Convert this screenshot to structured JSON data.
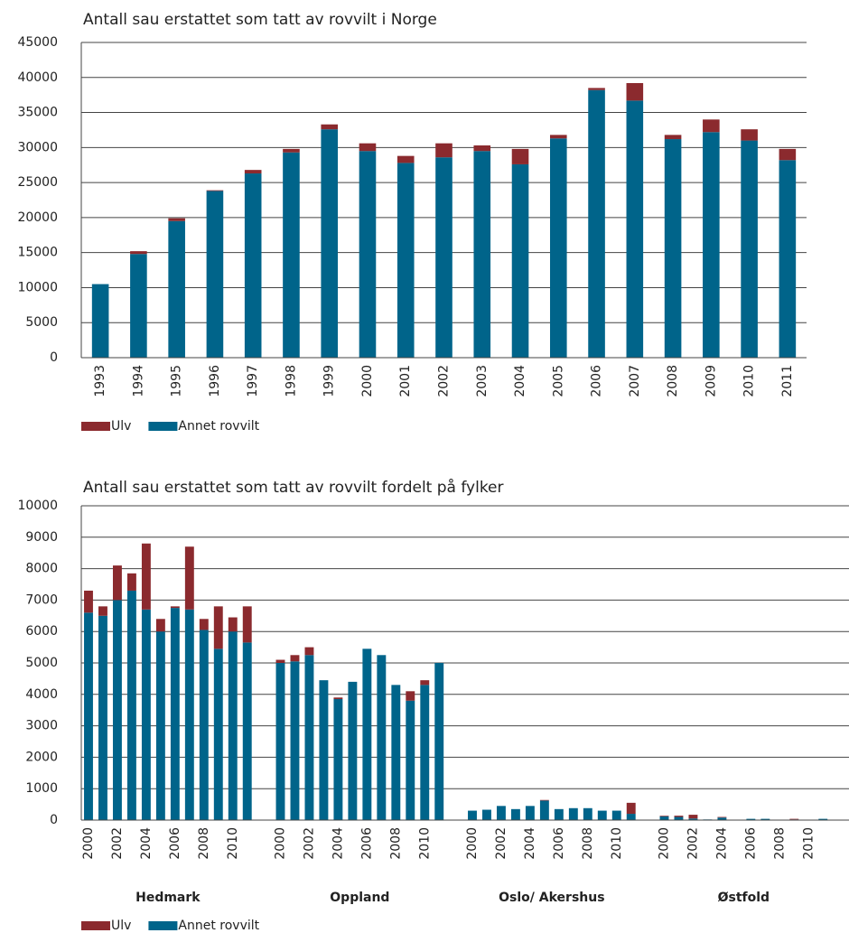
{
  "chart_data": [
    {
      "type": "bar",
      "stacked": true,
      "title": "Antall sau erstattet som tatt av rovvilt i Norge",
      "categories": [
        "1993",
        "1994",
        "1995",
        "1996",
        "1997",
        "1998",
        "1999",
        "2000",
        "2001",
        "2002",
        "2003",
        "2004",
        "2005",
        "2006",
        "2007",
        "2008",
        "2009",
        "2010",
        "2011"
      ],
      "series": [
        {
          "name": "Annet rovvilt",
          "color": "#00648a",
          "values": [
            10500,
            14800,
            19500,
            23800,
            26300,
            29300,
            32600,
            29500,
            27800,
            28600,
            29500,
            27600,
            31300,
            38200,
            36700,
            31200,
            32200,
            31000,
            28200
          ]
        },
        {
          "name": "Ulv",
          "color": "#8b2a2e",
          "values": [
            0,
            400,
            400,
            100,
            500,
            500,
            700,
            1100,
            1000,
            2000,
            800,
            2200,
            500,
            300,
            2500,
            600,
            1800,
            1600,
            1600
          ]
        }
      ],
      "ylim": [
        0,
        45000
      ],
      "yticks": [
        0,
        5000,
        10000,
        15000,
        20000,
        25000,
        30000,
        35000,
        40000,
        45000
      ],
      "grid": true
    },
    {
      "type": "bar",
      "stacked": true,
      "title": "Antall sau erstattet som tatt av rovvilt fordelt på fylker",
      "groups": [
        "Hedmark",
        "Oppland",
        "Oslo/ Akershus",
        "Østfold"
      ],
      "categories": [
        "2000",
        null,
        "2002",
        null,
        "2004",
        null,
        "2006",
        null,
        "2008",
        null,
        "2010",
        null,
        "2000",
        null,
        "2002",
        null,
        "2004",
        null,
        "2006",
        null,
        "2008",
        null,
        "2010",
        null,
        "2000",
        null,
        "2002",
        null,
        "2004",
        null,
        "2006",
        null,
        "2008",
        null,
        "2010",
        null,
        "2000",
        null,
        "2002",
        null,
        "2004",
        null,
        "2006",
        null,
        "2008",
        null,
        "2010",
        null
      ],
      "series": [
        {
          "name": "Annet rovvilt",
          "color": "#00648a",
          "values": [
            6600,
            6500,
            7000,
            7300,
            6700,
            6000,
            6750,
            6700,
            6050,
            5450,
            6000,
            5650,
            5000,
            5050,
            5250,
            4450,
            3850,
            4400,
            5450,
            5250,
            4300,
            3800,
            4300,
            5000,
            300,
            330,
            450,
            350,
            450,
            620,
            350,
            380,
            380,
            300,
            300,
            200,
            120,
            100,
            50,
            20,
            80,
            10,
            40,
            40,
            10,
            20,
            0,
            40
          ]
        },
        {
          "name": "Ulv",
          "color": "#8b2a2e",
          "values": [
            700,
            300,
            1100,
            550,
            2100,
            400,
            50,
            2000,
            350,
            1350,
            450,
            1150,
            100,
            200,
            250,
            0,
            50,
            0,
            0,
            0,
            0,
            300,
            150,
            0,
            0,
            0,
            0,
            0,
            0,
            20,
            0,
            0,
            0,
            0,
            0,
            350,
            20,
            40,
            120,
            0,
            20,
            0,
            0,
            0,
            0,
            20,
            0,
            0
          ]
        }
      ],
      "ylim": [
        0,
        10000
      ],
      "yticks": [
        0,
        1000,
        2000,
        3000,
        4000,
        5000,
        6000,
        7000,
        8000,
        9000,
        10000
      ],
      "grid": true
    }
  ]
}
